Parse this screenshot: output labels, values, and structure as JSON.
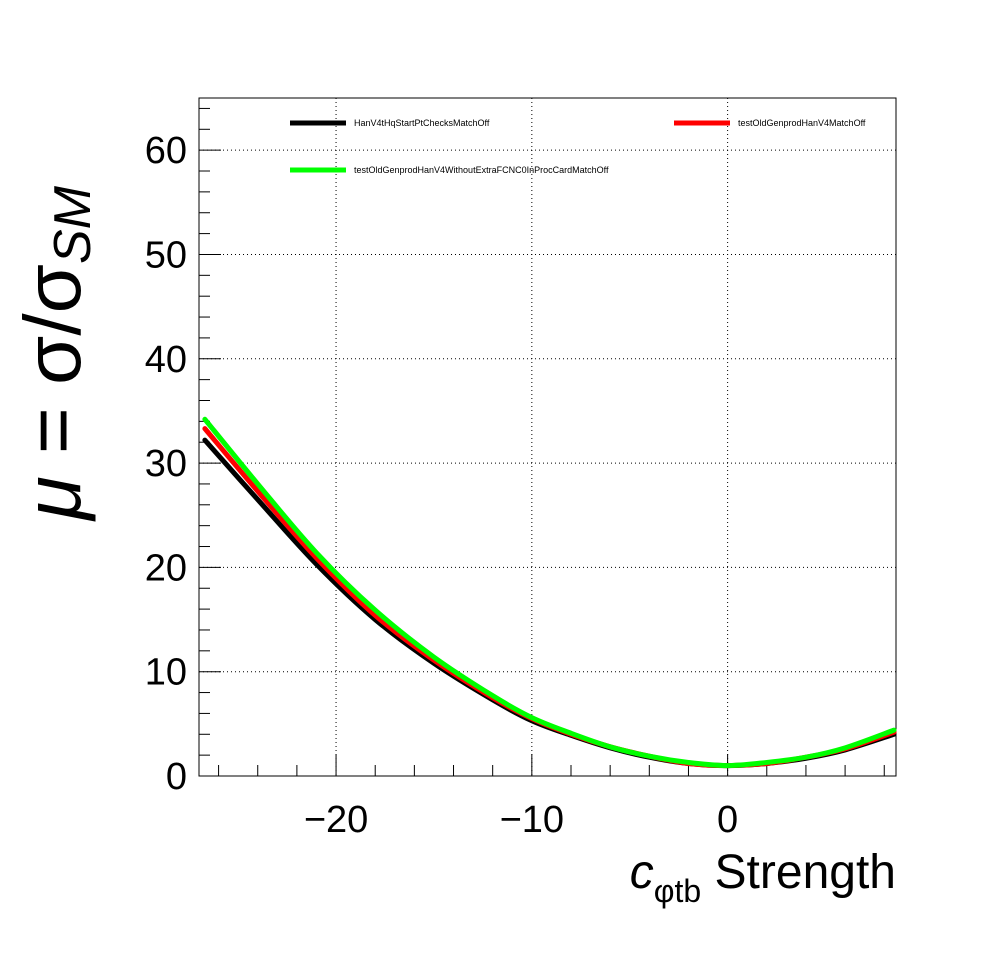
{
  "chart_data": {
    "type": "line",
    "title": "",
    "xlabel": {
      "var": "c",
      "sub": "φtb",
      "rest": " Strength"
    },
    "ylabel": {
      "mu": "μ",
      "eq": " = σ/σ",
      "sub": "SM"
    },
    "xlim": [
      -27,
      8.6
    ],
    "ylim": [
      0,
      65
    ],
    "x_ticks": [
      {
        "value": -20,
        "label": "−20"
      },
      {
        "value": -10,
        "label": "−10"
      },
      {
        "value": 0,
        "label": "0"
      }
    ],
    "y_ticks": [
      {
        "value": 0,
        "label": "0"
      },
      {
        "value": 10,
        "label": "10"
      },
      {
        "value": 20,
        "label": "20"
      },
      {
        "value": 30,
        "label": "30"
      },
      {
        "value": 40,
        "label": "40"
      },
      {
        "value": 50,
        "label": "50"
      },
      {
        "value": 60,
        "label": "60"
      }
    ],
    "grid": true,
    "legend_position": "top",
    "series": [
      {
        "name": "HanV4tHqStartPtChecksMatchOff",
        "color": "#000000",
        "x": [
          -26.7,
          -24,
          -21,
          -18,
          -15,
          -12,
          -10,
          -8,
          -6,
          -4,
          -2,
          0,
          2,
          4,
          6,
          8.5
        ],
        "y": [
          32.2,
          26.5,
          20.3,
          15.0,
          10.8,
          7.3,
          5.3,
          3.9,
          2.7,
          1.8,
          1.2,
          1.0,
          1.2,
          1.7,
          2.5,
          4.0
        ]
      },
      {
        "name": "testOldGenprodHanV4MatchOff",
        "color": "#ff0000",
        "x": [
          -26.7,
          -24,
          -21,
          -18,
          -15,
          -12,
          -10,
          -8,
          -6,
          -4,
          -2,
          0,
          2,
          4,
          6,
          8.5
        ],
        "y": [
          33.3,
          27.3,
          20.9,
          15.4,
          11.1,
          7.5,
          5.5,
          4.0,
          2.8,
          1.9,
          1.2,
          1.0,
          1.2,
          1.8,
          2.6,
          4.2
        ]
      },
      {
        "name": "testOldGenprodHanV4WithoutExtraFCNC0InProcCardMatchOff",
        "color": "#00ff00",
        "x": [
          -26.7,
          -24,
          -21,
          -18,
          -15,
          -12,
          -10,
          -8,
          -6,
          -4,
          -2,
          0,
          2,
          4,
          6,
          8.5
        ],
        "y": [
          34.2,
          28.0,
          21.4,
          15.9,
          11.4,
          7.7,
          5.6,
          4.1,
          2.8,
          1.9,
          1.3,
          1.0,
          1.3,
          1.8,
          2.7,
          4.4
        ]
      }
    ]
  }
}
